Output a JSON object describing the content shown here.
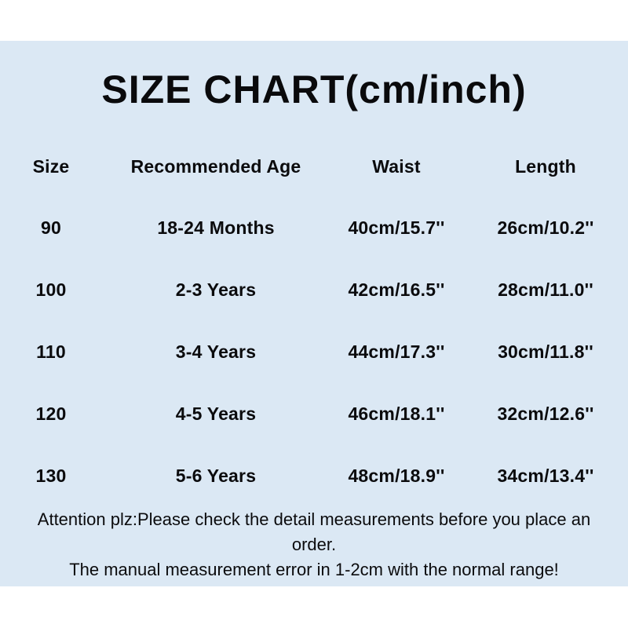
{
  "page": {
    "title": "SIZE CHART(cm/inch)"
  },
  "colors": {
    "panel_background": "#dbe8f4",
    "page_background": "#ffffff",
    "text": "#0b0b0d"
  },
  "chart_data": {
    "type": "table",
    "title": "SIZE CHART(cm/inch)",
    "columns": [
      "Size",
      "Recommended Age",
      "Waist",
      "Length"
    ],
    "rows": [
      [
        "90",
        "18-24 Months",
        "40cm/15.7''",
        "26cm/10.2''"
      ],
      [
        "100",
        "2-3 Years",
        "42cm/16.5''",
        "28cm/11.0''"
      ],
      [
        "110",
        "3-4 Years",
        "44cm/17.3''",
        "30cm/11.8''"
      ],
      [
        "120",
        "4-5 Years",
        "46cm/18.1''",
        "32cm/12.6''"
      ],
      [
        "130",
        "5-6 Years",
        "48cm/18.9''",
        "34cm/13.4''"
      ]
    ],
    "units": {
      "waist": "cm/inch",
      "length": "cm/inch"
    }
  },
  "footer": {
    "lines": [
      "Attention plz:Please check the detail measurements before you place an",
      "order.",
      "The manual measurement error in 1-2cm with the normal range!"
    ]
  }
}
